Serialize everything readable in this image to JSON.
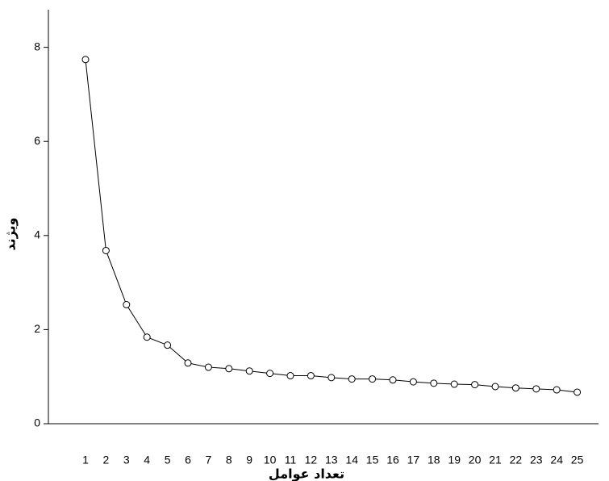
{
  "chart_data": {
    "type": "line",
    "x_label": "تعداد عوامل",
    "y_label": "ویژند",
    "categories": [
      "1",
      "2",
      "3",
      "4",
      "5",
      "6",
      "7",
      "8",
      "9",
      "10",
      "11",
      "12",
      "13",
      "14",
      "15",
      "16",
      "17",
      "18",
      "19",
      "20",
      "21",
      "22",
      "23",
      "24",
      "25"
    ],
    "values": [
      7.74,
      3.68,
      2.53,
      1.84,
      1.67,
      1.29,
      1.2,
      1.17,
      1.12,
      1.07,
      1.02,
      1.02,
      0.98,
      0.95,
      0.95,
      0.93,
      0.89,
      0.86,
      0.84,
      0.83,
      0.79,
      0.76,
      0.74,
      0.72,
      0.67
    ],
    "color": "#000000",
    "ylim": [
      0,
      8.8
    ],
    "yticks": [
      0,
      2,
      4,
      6,
      8
    ]
  }
}
